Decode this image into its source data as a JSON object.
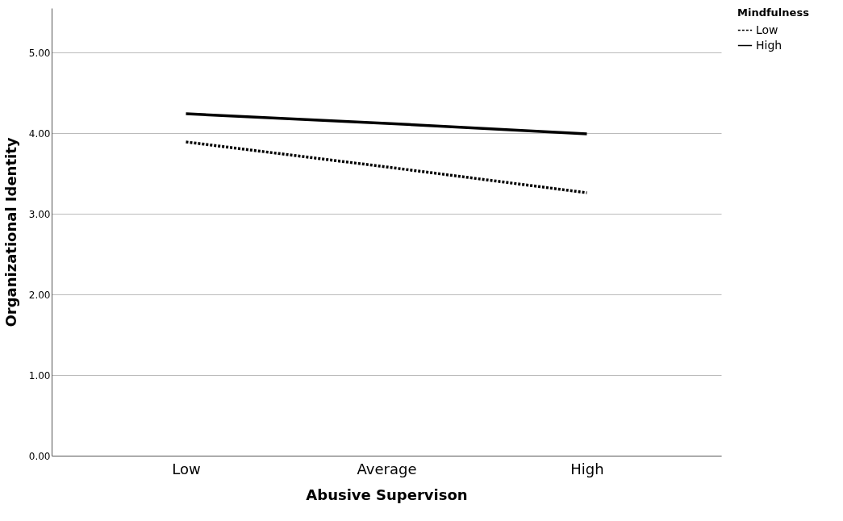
{
  "chart_data": {
    "type": "line",
    "xlabel": "Abusive Supervison",
    "ylabel": "Organizational Identity",
    "legend_title": "Mindfulness",
    "categories": [
      "Low",
      "Average",
      "High"
    ],
    "series": [
      {
        "name": "Low",
        "color": "#000000",
        "line_style": "dotted",
        "values": [
          3.89,
          3.58,
          3.26
        ]
      },
      {
        "name": "High",
        "color": "#000000",
        "line_style": "solid",
        "values": [
          4.24,
          4.12,
          3.99
        ]
      }
    ],
    "ylim": [
      0,
      5.55
    ],
    "yticks": [
      {
        "value": 0,
        "label": "0.00"
      },
      {
        "value": 1,
        "label": "1.00"
      },
      {
        "value": 2,
        "label": "2.00"
      },
      {
        "value": 3,
        "label": "3.00"
      },
      {
        "value": 4,
        "label": "4.00"
      },
      {
        "value": 5,
        "label": "5.00"
      }
    ],
    "grid": "y",
    "legend": "top right",
    "marker": "none"
  }
}
